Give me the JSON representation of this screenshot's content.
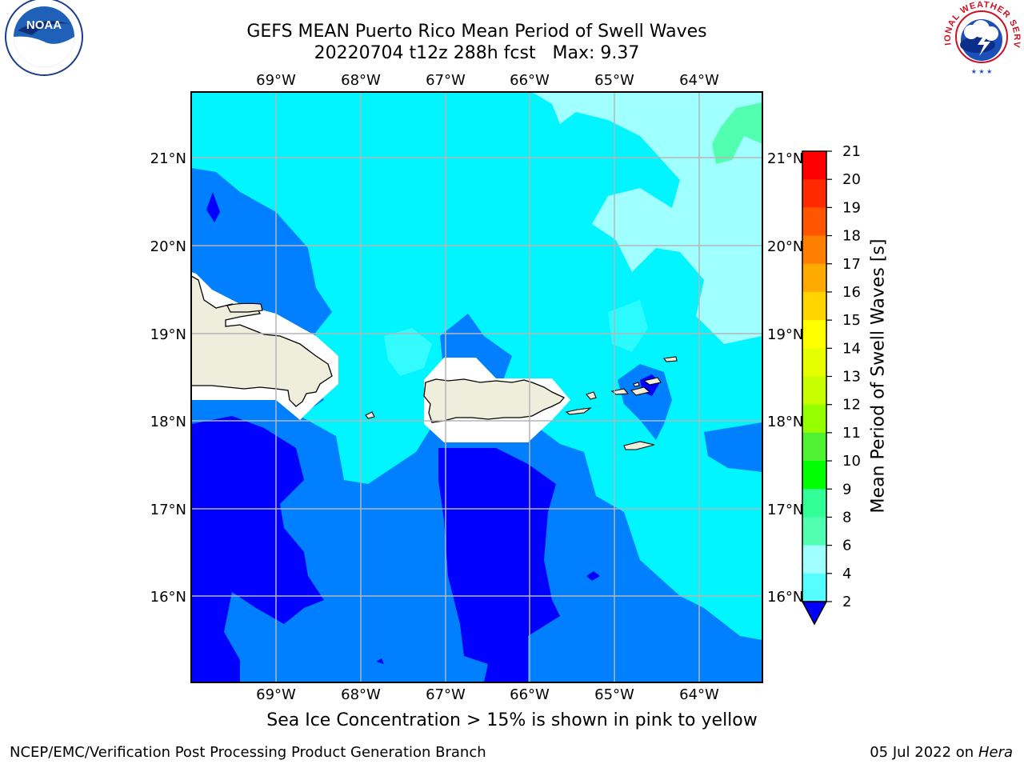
{
  "header": {
    "title_line1": "GEFS MEAN Puerto Rico Mean Period of Swell Waves",
    "title_line2": "20220704 t12z 288h fcst   Max: 9.37"
  },
  "map": {
    "lon_labels": [
      "69°W",
      "68°W",
      "67°W",
      "66°W",
      "65°W",
      "64°W"
    ],
    "lat_labels": [
      "21°N",
      "20°N",
      "19°N",
      "18°N",
      "17°N",
      "16°N"
    ],
    "lon_range": [
      -70.0,
      -63.25
    ],
    "lat_range": [
      15.0,
      21.75
    ]
  },
  "colorbar": {
    "label": "Mean Period of Swell Waves [s]",
    "ticks": [
      "21",
      "20",
      "19",
      "18",
      "17",
      "16",
      "15",
      "14",
      "13",
      "12",
      "11",
      "10",
      "9",
      "8",
      "6",
      "4",
      "2"
    ],
    "colors": [
      "#ff0000",
      "#ff2a00",
      "#ff5500",
      "#ff8000",
      "#ffaa00",
      "#ffd400",
      "#ffff00",
      "#e6ff00",
      "#c8ff00",
      "#96ff00",
      "#50f032",
      "#00ff00",
      "#32ff96",
      "#52ffb0",
      "#a0ffff",
      "#55ffff",
      "#00f5ff",
      "#0080ff",
      "#0000ff"
    ]
  },
  "logos": {
    "noaa_text": "NOAA",
    "nws_text": "NATIONAL WEATHER SERVICE"
  },
  "notes": {
    "sea_ice": "Sea Ice Concentration > 15% is shown in pink to yellow"
  },
  "footer": {
    "left": "NCEP/EMC/Verification Post Processing Product Generation Branch",
    "right_date": "05 Jul 2022 on",
    "right_host": "Hera"
  }
}
